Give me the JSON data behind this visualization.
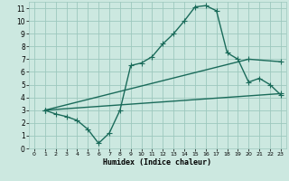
{
  "xlabel": "Humidex (Indice chaleur)",
  "ylabel": "",
  "background_color": "#cce8e0",
  "grid_color": "#9dc8be",
  "line_color": "#1a6b5a",
  "xlim": [
    -0.5,
    23.5
  ],
  "ylim": [
    0,
    11.5
  ],
  "xticks": [
    0,
    1,
    2,
    3,
    4,
    5,
    6,
    7,
    8,
    9,
    10,
    11,
    12,
    13,
    14,
    15,
    16,
    17,
    18,
    19,
    20,
    21,
    22,
    23
  ],
  "yticks": [
    0,
    1,
    2,
    3,
    4,
    5,
    6,
    7,
    8,
    9,
    10,
    11
  ],
  "line1_x": [
    1,
    2,
    3,
    4,
    5,
    6,
    7,
    8,
    9,
    10,
    11,
    12,
    13,
    14,
    15,
    16,
    17,
    18,
    19,
    20,
    21,
    22,
    23
  ],
  "line1_y": [
    3.0,
    2.7,
    2.5,
    2.2,
    1.5,
    0.4,
    1.2,
    3.0,
    6.5,
    6.7,
    7.2,
    8.2,
    9.0,
    10.0,
    11.1,
    11.2,
    10.8,
    7.5,
    7.0,
    5.2,
    5.5,
    5.0,
    4.2
  ],
  "line2_x": [
    1,
    23
  ],
  "line2_y": [
    3.0,
    4.3
  ],
  "line3_x": [
    1,
    20,
    23
  ],
  "line3_y": [
    3.0,
    7.0,
    6.8
  ],
  "marker": "+",
  "markersize": 4,
  "linewidth": 1.0
}
